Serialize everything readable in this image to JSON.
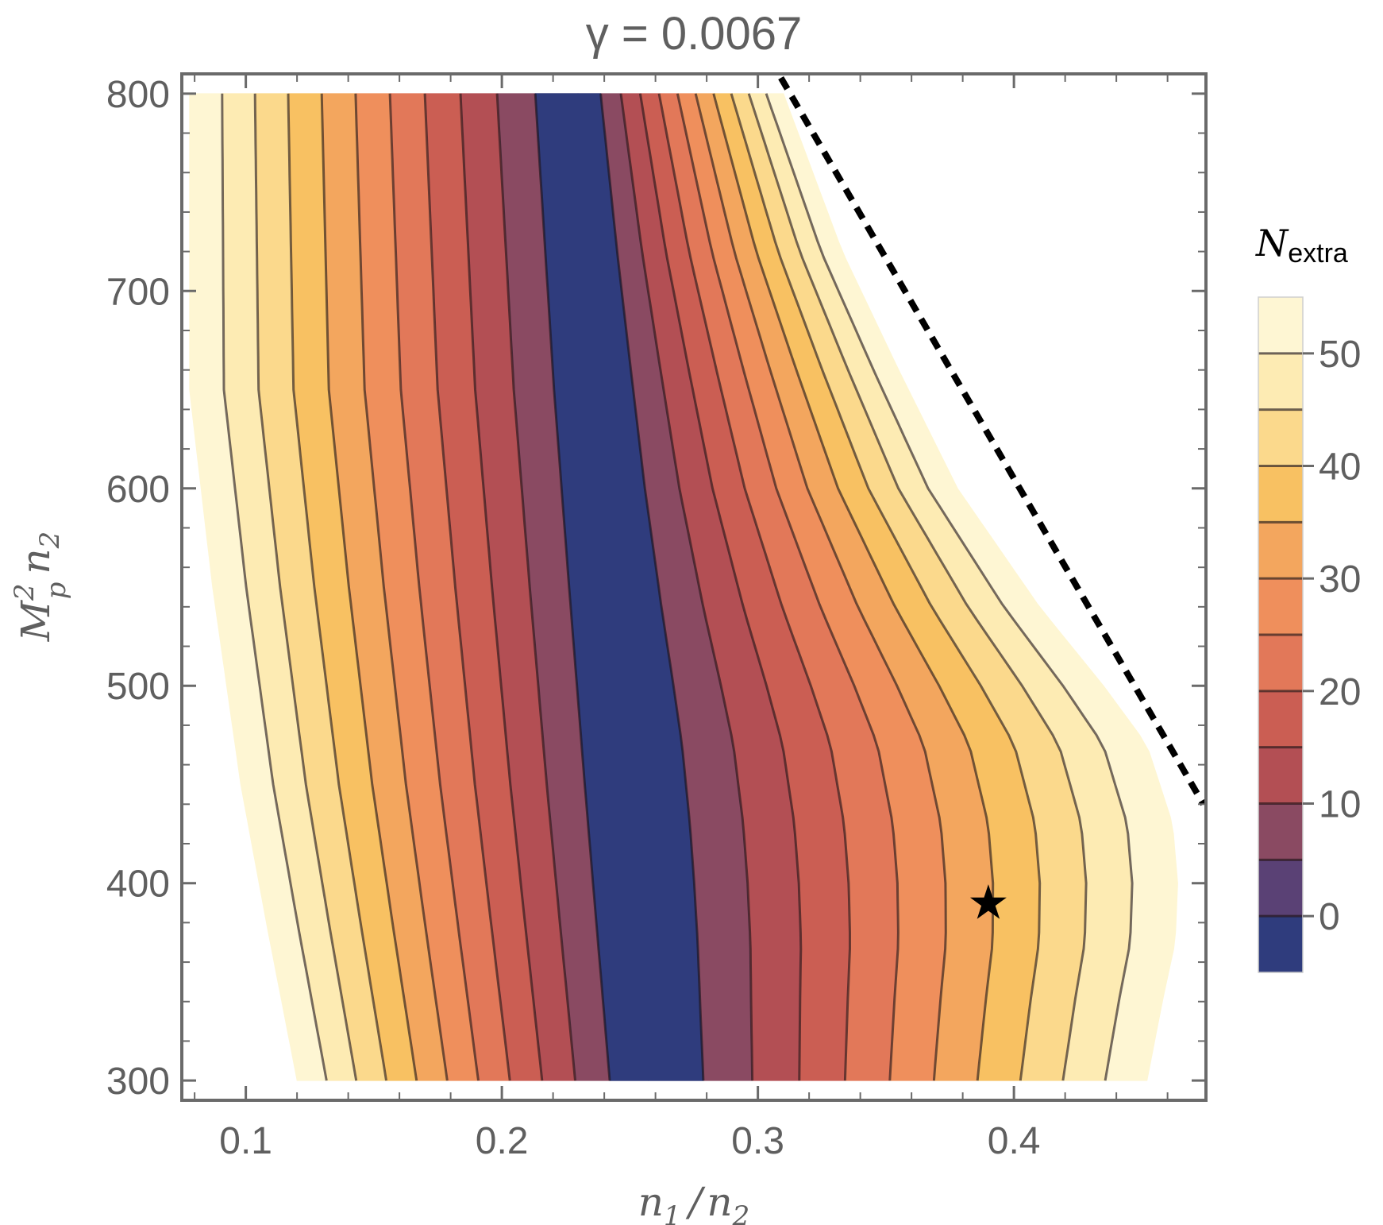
{
  "chart_data": {
    "type": "contour",
    "title": "γ = 0.0067",
    "xlabel": {
      "base": "n",
      "sub1": "1",
      "sep": "/",
      "base2": "n",
      "sub2": "2"
    },
    "ylabel": {
      "base": "M",
      "sup": "2",
      "sub": "p",
      "base2": "n",
      "sub2": "2"
    },
    "xlim": [
      0.075,
      0.475
    ],
    "ylim": [
      290,
      810
    ],
    "x_ticks": [
      "0.1",
      "0.2",
      "0.3",
      "0.4"
    ],
    "x_tick_values": [
      0.1,
      0.2,
      0.3,
      0.4
    ],
    "y_ticks": [
      "300",
      "400",
      "500",
      "600",
      "700",
      "800"
    ],
    "y_tick_values": [
      300,
      400,
      500,
      600,
      700,
      800
    ],
    "colorbar": {
      "label_base": "N",
      "label_sub": "extra",
      "range": [
        -5,
        55
      ],
      "ticks": [
        "0",
        "10",
        "20",
        "30",
        "40",
        "50"
      ],
      "tick_values": [
        0,
        10,
        20,
        30,
        40,
        50
      ],
      "contour_levels": [
        0,
        5,
        10,
        15,
        20,
        25,
        30,
        35,
        40,
        45,
        50
      ],
      "colors": [
        "#2f3c7d",
        "#5a4175",
        "#8a4a62",
        "#b34f54",
        "#cb5e53",
        "#e27859",
        "#ef8f5c",
        "#f3a65e",
        "#f8c162",
        "#fbd98c",
        "#fdebb3",
        "#fef6d3"
      ]
    },
    "domain": {
      "left_boundary": [
        [
          0.078,
          800
        ],
        [
          0.078,
          650
        ],
        [
          0.087,
          550
        ],
        [
          0.098,
          450
        ],
        [
          0.108,
          380
        ],
        [
          0.12,
          300
        ]
      ],
      "right_boundary": [
        [
          0.31,
          800
        ],
        [
          0.333,
          720
        ],
        [
          0.355,
          660
        ],
        [
          0.378,
          600
        ],
        [
          0.41,
          540
        ],
        [
          0.435,
          500
        ],
        [
          0.452,
          470
        ],
        [
          0.462,
          430
        ],
        [
          0.464,
          400
        ],
        [
          0.463,
          370
        ],
        [
          0.458,
          340
        ],
        [
          0.452,
          300
        ]
      ]
    },
    "constraint_line": {
      "style": "dashed",
      "points": [
        [
          0.309,
          808
        ],
        [
          0.474,
          440
        ]
      ]
    },
    "marker": {
      "symbol": "★",
      "x": 0.39,
      "y": 390
    }
  }
}
